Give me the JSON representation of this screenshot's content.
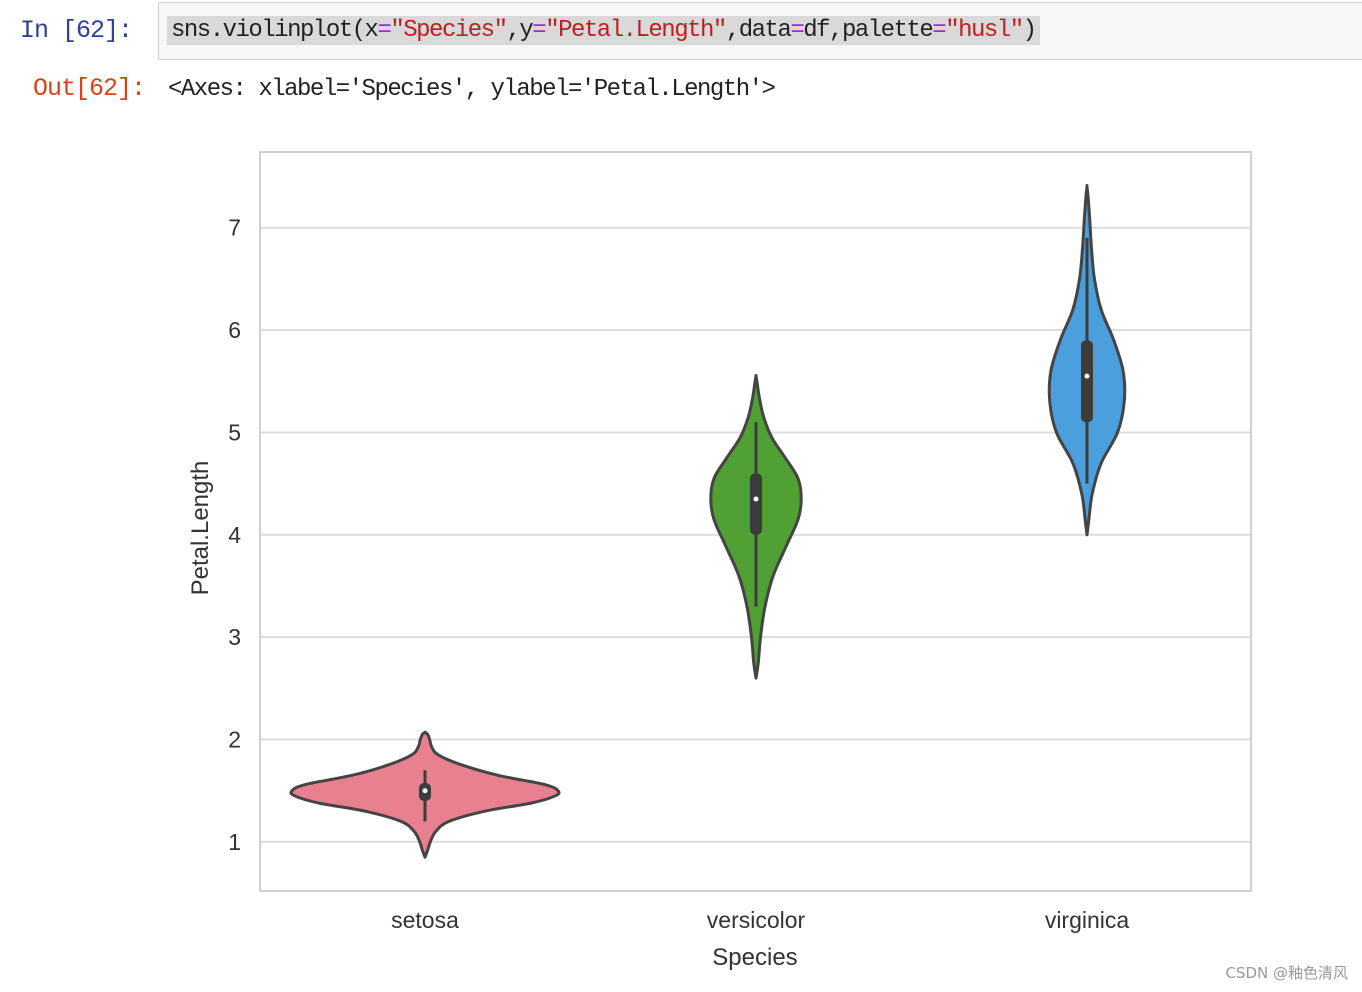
{
  "cell": {
    "in_prompt": "In  [62]:",
    "out_prompt": "Out[62]:",
    "code": {
      "p1": "sns.violinplot(x",
      "eq": "=",
      "s1": "\"Species\"",
      "p2": ",y",
      "s2": "\"Petal.Length\"",
      "p3": ",data",
      "p4": "df,palette",
      "s3": "\"husl\"",
      "p5": ")"
    },
    "output": "<Axes: xlabel='Species', ylabel='Petal.Length'>"
  },
  "watermark": "CSDN @釉色清风",
  "chart_data": {
    "type": "violin",
    "xlabel": "Species",
    "ylabel": "Petal.Length",
    "ylim": [
      0.52,
      7.74
    ],
    "yticks": [
      1,
      2,
      3,
      4,
      5,
      6,
      7
    ],
    "grid": true,
    "categories": [
      "setosa",
      "versicolor",
      "virginica"
    ],
    "colors": [
      "#e8808f",
      "#50a033",
      "#4a9fdc"
    ],
    "series": [
      {
        "name": "setosa",
        "width_scale": 1.0,
        "density": [
          [
            0.85,
            0
          ],
          [
            0.92,
            0.02
          ],
          [
            1.0,
            0.04
          ],
          [
            1.1,
            0.08
          ],
          [
            1.2,
            0.18
          ],
          [
            1.3,
            0.45
          ],
          [
            1.38,
            0.8
          ],
          [
            1.45,
            0.98
          ],
          [
            1.5,
            1.0
          ],
          [
            1.56,
            0.9
          ],
          [
            1.65,
            0.55
          ],
          [
            1.75,
            0.28
          ],
          [
            1.85,
            0.1
          ],
          [
            1.93,
            0.05
          ],
          [
            2.0,
            0.035
          ],
          [
            2.05,
            0.02
          ],
          [
            2.07,
            0
          ]
        ],
        "box": {
          "whisker_low": 1.2,
          "q1": 1.4,
          "median": 1.5,
          "q3": 1.575,
          "whisker_high": 1.7
        }
      },
      {
        "name": "versicolor",
        "width_scale": 0.34,
        "density": [
          [
            2.6,
            0
          ],
          [
            2.75,
            0.05
          ],
          [
            3.0,
            0.1
          ],
          [
            3.3,
            0.2
          ],
          [
            3.6,
            0.38
          ],
          [
            3.9,
            0.68
          ],
          [
            4.15,
            0.93
          ],
          [
            4.35,
            1.0
          ],
          [
            4.55,
            0.93
          ],
          [
            4.75,
            0.65
          ],
          [
            4.95,
            0.35
          ],
          [
            5.15,
            0.17
          ],
          [
            5.35,
            0.07
          ],
          [
            5.5,
            0.02
          ],
          [
            5.55,
            0
          ]
        ],
        "box": {
          "whisker_low": 3.3,
          "q1": 4.0,
          "median": 4.35,
          "q3": 4.6,
          "whisker_high": 5.1
        }
      },
      {
        "name": "virginica",
        "width_scale": 0.28,
        "density": [
          [
            4.0,
            0
          ],
          [
            4.15,
            0.05
          ],
          [
            4.4,
            0.14
          ],
          [
            4.7,
            0.38
          ],
          [
            5.0,
            0.82
          ],
          [
            5.3,
            1.0
          ],
          [
            5.6,
            0.97
          ],
          [
            5.9,
            0.72
          ],
          [
            6.2,
            0.38
          ],
          [
            6.5,
            0.2
          ],
          [
            6.8,
            0.12
          ],
          [
            7.1,
            0.07
          ],
          [
            7.3,
            0.03
          ],
          [
            7.4,
            0
          ]
        ],
        "box": {
          "whisker_low": 4.5,
          "q1": 5.1,
          "median": 5.55,
          "q3": 5.9,
          "whisker_high": 6.9
        }
      }
    ]
  }
}
